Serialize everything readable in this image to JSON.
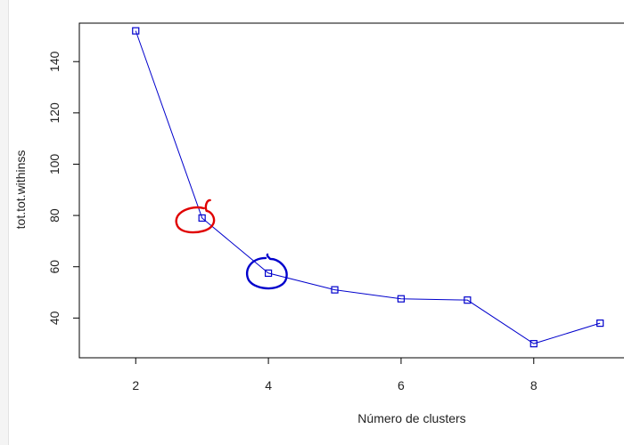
{
  "chart_data": {
    "type": "line",
    "title": "",
    "xlabel": "Número de clusters",
    "ylabel": "tot.tot.withinss",
    "x": [
      2,
      3,
      4,
      5,
      6,
      7,
      8,
      9
    ],
    "series": [
      {
        "values": [
          152,
          79,
          57.5,
          51,
          47.5,
          47,
          30,
          38
        ]
      }
    ],
    "xticks": [
      2,
      4,
      6,
      8
    ],
    "yticks": [
      40,
      60,
      80,
      100,
      120,
      140
    ],
    "xlim": [
      1.15,
      9.75
    ],
    "ylim": [
      24.5,
      155
    ],
    "grid": false,
    "legend": "none",
    "colors": {
      "series": "#0000cc",
      "annotation_red": "#e00000",
      "annotation_blue": "#0000cc"
    },
    "annotations": [
      {
        "x": 3,
        "y": 79,
        "shape": "hand-drawn-circle",
        "color": "#e00000"
      },
      {
        "x": 4,
        "y": 57.5,
        "shape": "hand-drawn-circle",
        "color": "#0000cc"
      }
    ]
  }
}
